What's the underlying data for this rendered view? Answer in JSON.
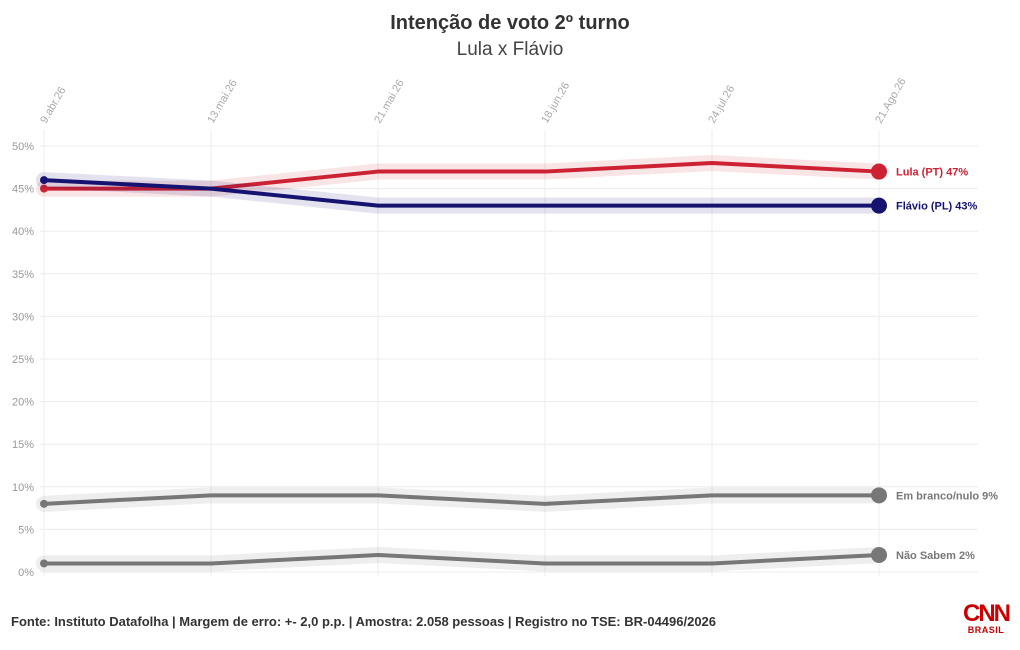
{
  "chart_data": {
    "type": "line",
    "title": "Intenção de voto 2º turno",
    "subtitle": "Lula x Flávio",
    "x": [
      "9.abr.26",
      "13.mai.26",
      "21.mai.26",
      "18.jun.26",
      "24.jul.26",
      "21.Ago.26"
    ],
    "ylim": [
      0,
      50
    ],
    "yticks": [
      "0%",
      "5%",
      "10%",
      "15%",
      "20%",
      "25%",
      "30%",
      "35%",
      "40%",
      "45%",
      "50%"
    ],
    "grid": true,
    "legend": "end-of-line labels",
    "series": [
      {
        "name": "Lula (PT)",
        "end_label": "Lula (PT) 47%",
        "color": "#cc2233",
        "values": [
          45,
          45,
          47,
          47,
          48,
          47
        ]
      },
      {
        "name": "Flávio (PL)",
        "end_label": "Flávio (PL) 43%",
        "color": "#161370",
        "values": [
          46,
          45,
          43,
          43,
          43,
          43
        ]
      },
      {
        "name": "Em branco/nulo",
        "end_label": "Em branco/nulo 9%",
        "color": "#777777",
        "values": [
          8,
          9,
          9,
          8,
          9,
          9
        ]
      },
      {
        "name": "Não Sabem",
        "end_label": "Não Sabem 2%",
        "color": "#777777",
        "values": [
          1,
          1,
          2,
          1,
          1,
          2
        ]
      }
    ]
  },
  "footer": "Fonte: Instituto Datafolha | Margem de erro: +- 2,0 p.p. | Amostra: 2.058 pessoas | Registro no TSE: BR-04496/2026",
  "logo": {
    "mark": "CNN",
    "sub": "BRASIL"
  }
}
